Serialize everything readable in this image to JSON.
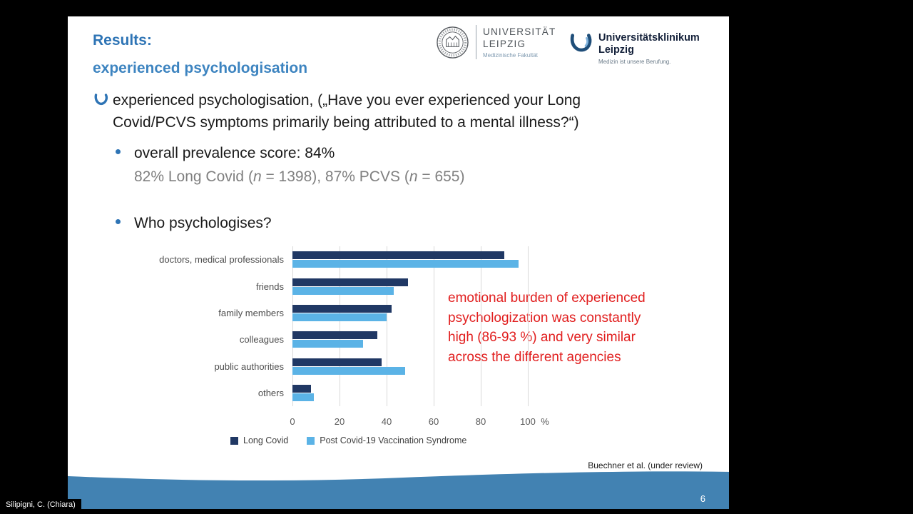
{
  "meeting": {
    "participant_label": "Silipigni, C. (Chiara)"
  },
  "slide": {
    "title_line1": "Results:",
    "title_line2": "experienced psychologisation",
    "logos": {
      "university": {
        "line1": "UNIVERSITÄT",
        "line2": "LEIPZIG",
        "subtitle": "Medizinische Fakultät"
      },
      "klinikum": {
        "line1": "Universitätsklinikum",
        "line2": "Leipzig",
        "tagline": "Medizin ist unsere Berufung."
      }
    },
    "bullet_main": "experienced psychologisation, („Have you ever experienced your Long\nCovid/PCVS symptoms primarily being attributed to a mental illness?“)",
    "sub_bullet_1": "overall prevalence score: 84%",
    "stats": {
      "p1": "82% Long Covid (",
      "n1": "n",
      "p2": " = 1398), 87% PCVS (",
      "n2": "n",
      "p3": " = 655)"
    },
    "sub_bullet_2": "Who psychologises?",
    "annotation": "emotional burden of experienced\npsychologization was constantly\nhigh (86-93 %) and very similar\nacross the different agencies",
    "citation": "Buechner et al. (under review)",
    "page_number": "6"
  },
  "chart_data": {
    "type": "bar",
    "orientation": "horizontal",
    "title": "Who psychologises?",
    "categories": [
      "doctors, medical professionals",
      "friends",
      "family members",
      "colleagues",
      "public authorities",
      "others"
    ],
    "series": [
      {
        "name": "Long Covid",
        "color": "#203864",
        "values": [
          90,
          49,
          42,
          36,
          38,
          8
        ]
      },
      {
        "name": "Post Covid-19 Vaccination Syndrome",
        "color": "#5bb3e6",
        "values": [
          96,
          43,
          40,
          30,
          48,
          9
        ]
      }
    ],
    "x_ticks": [
      0,
      20,
      40,
      60,
      80,
      100
    ],
    "x_unit": "%",
    "xlim": [
      0,
      110
    ],
    "grid": true,
    "legend_position": "bottom"
  },
  "colors": {
    "accent_blue": "#2e74b5",
    "bar_dark": "#203864",
    "bar_light": "#5bb3e6",
    "annotation_red": "#e11d1d",
    "footer_blue": "#4282b2"
  }
}
